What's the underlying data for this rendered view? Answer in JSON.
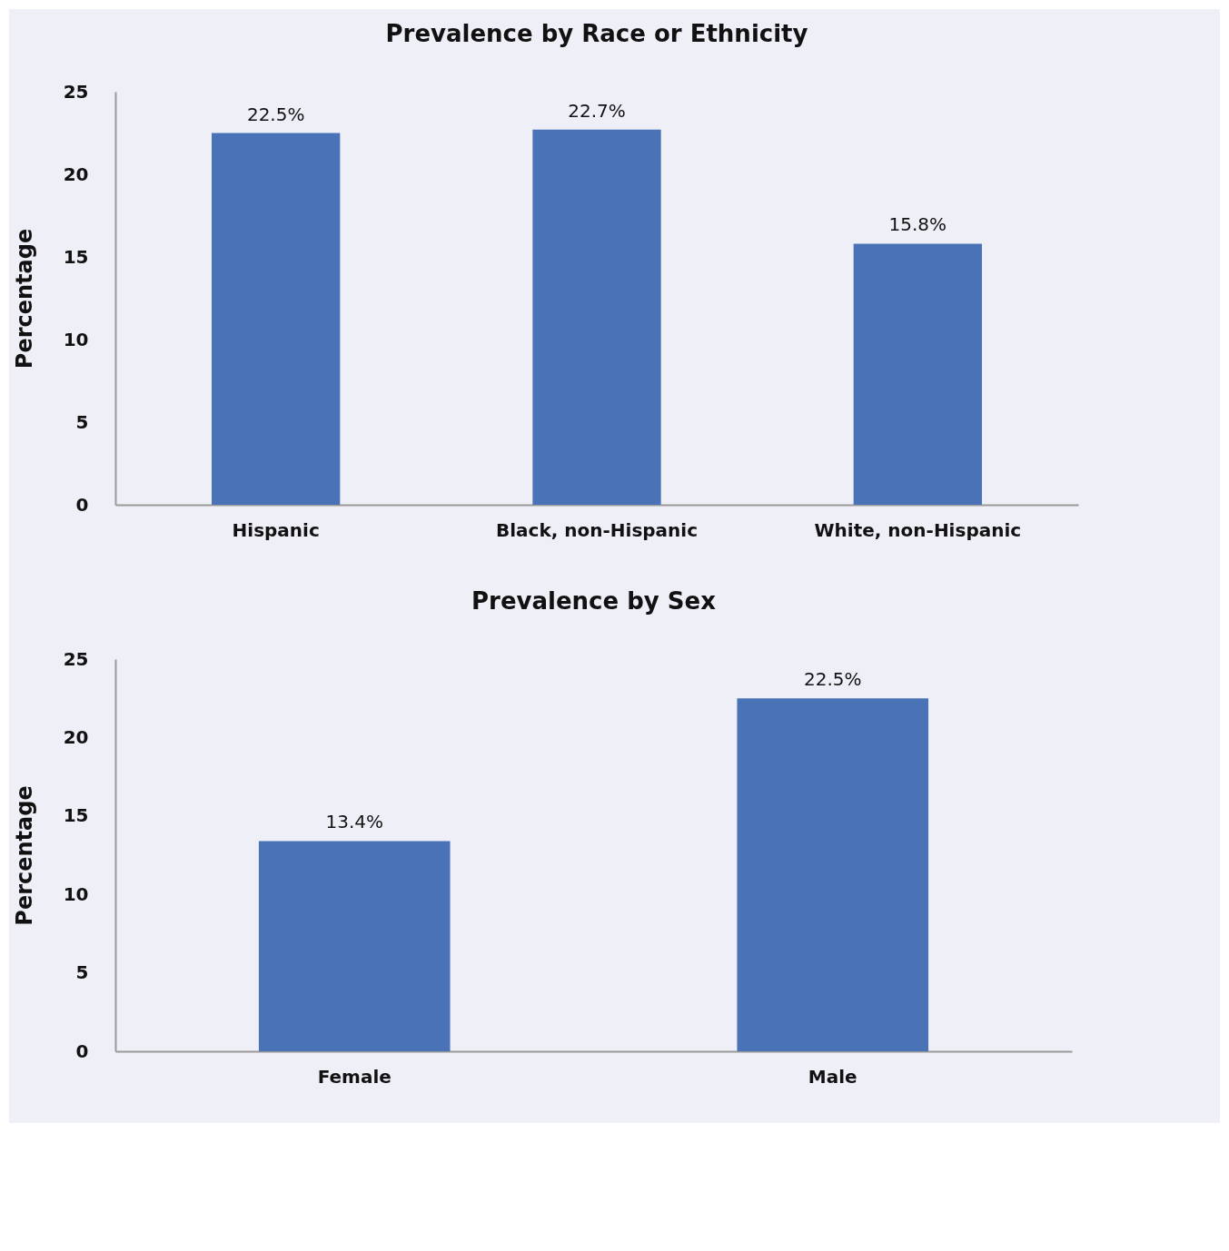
{
  "chart_data": [
    {
      "type": "bar",
      "title": "Prevalence by Race or Ethnicity",
      "ylabel": "Percentage",
      "categories": [
        "Hispanic",
        "Black, non-Hispanic",
        "White, non-Hispanic"
      ],
      "values": [
        22.5,
        22.7,
        15.8
      ],
      "value_labels": [
        "22.5%",
        "22.7%",
        "15.8%"
      ],
      "color": "#4a72b7",
      "ylim": [
        0,
        25
      ],
      "yticks": [
        0,
        5,
        10,
        15,
        20,
        25
      ]
    },
    {
      "type": "bar",
      "title": "Prevalence by Sex",
      "ylabel": "Percentage",
      "categories": [
        "Female",
        "Male"
      ],
      "values": [
        13.4,
        22.5
      ],
      "value_labels": [
        "13.4%",
        "22.5%"
      ],
      "color": "#4a72b7",
      "ylim": [
        0,
        25
      ],
      "yticks": [
        0,
        5,
        10,
        15,
        20,
        25
      ]
    }
  ]
}
